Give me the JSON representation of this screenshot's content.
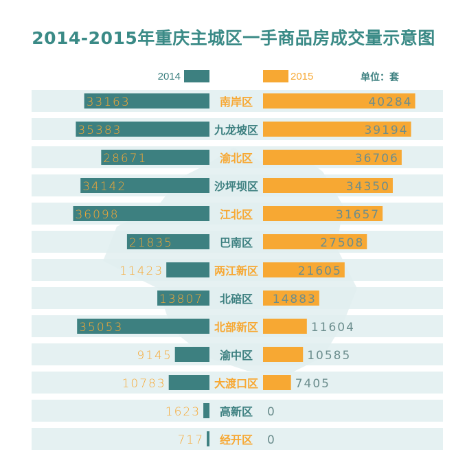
{
  "chart_data": {
    "type": "bar",
    "orientation": "horizontal-butterfly",
    "title": "2014-2015年重庆主城区一手商品房成交量示意图",
    "unit_label": "单位：套",
    "categories": [
      "南岸区",
      "九龙坡区",
      "渝北区",
      "沙坪坝区",
      "江北区",
      "巴南区",
      "两江新区",
      "北碚区",
      "北部新区",
      "渝中区",
      "大渡口区",
      "高新区",
      "经开区"
    ],
    "series": [
      {
        "name": "2014",
        "color": "#3d8080",
        "side": "left",
        "values": [
          33163,
          35383,
          28671,
          34142,
          36098,
          21835,
          11423,
          13807,
          35053,
          9145,
          10783,
          1623,
          717
        ]
      },
      {
        "name": "2015",
        "color": "#f7a833",
        "side": "right",
        "values": [
          40284,
          39194,
          36706,
          34350,
          31657,
          27508,
          21605,
          14883,
          11604,
          10585,
          7405,
          0,
          0
        ]
      }
    ],
    "legend_position": "top",
    "colors": {
      "title": "#3a8a86",
      "stripe": "#e0eff0",
      "map": "#e6f1f2",
      "teal": "#3d8080",
      "orange": "#f7a833",
      "grey_value": "#6b8d8d"
    },
    "label_colors": [
      "orange",
      "teal",
      "orange",
      "teal",
      "orange",
      "teal",
      "orange",
      "teal",
      "orange",
      "teal",
      "orange",
      "teal",
      "orange"
    ]
  }
}
